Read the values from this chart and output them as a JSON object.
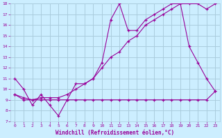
{
  "xlabel": "Windchill (Refroidissement éolien,°C)",
  "bg_color": "#cceeff",
  "grid_color": "#aaccdd",
  "line_color": "#990099",
  "xlim": [
    -0.5,
    23.5
  ],
  "ylim": [
    7,
    18
  ],
  "yticks": [
    7,
    8,
    9,
    10,
    11,
    12,
    13,
    14,
    15,
    16,
    17,
    18
  ],
  "xticks": [
    0,
    1,
    2,
    3,
    4,
    5,
    6,
    7,
    8,
    9,
    10,
    11,
    12,
    13,
    14,
    15,
    16,
    17,
    18,
    19,
    20,
    21,
    22,
    23
  ],
  "line1_x": [
    0,
    1,
    2,
    3,
    4,
    5,
    6,
    7,
    8,
    9,
    10,
    11,
    12,
    13,
    14,
    15,
    16,
    17,
    18,
    19,
    20,
    21,
    22,
    23
  ],
  "line1_y": [
    11,
    10,
    8.5,
    9.5,
    8.5,
    7.5,
    9.0,
    10.5,
    10.5,
    11.0,
    12.5,
    16.5,
    18.0,
    15.5,
    15.5,
    16.5,
    17.0,
    17.5,
    18.0,
    18.0,
    14.0,
    12.5,
    11.0,
    9.8
  ],
  "line2_x": [
    0,
    1,
    2,
    3,
    4,
    5,
    6,
    7,
    8,
    9,
    10,
    11,
    12,
    13,
    14,
    15,
    16,
    17,
    18,
    19,
    20,
    21,
    22,
    23
  ],
  "line2_y": [
    9.5,
    9.0,
    9.0,
    9.2,
    9.2,
    9.2,
    9.5,
    10.0,
    10.5,
    11.0,
    12.0,
    13.0,
    13.5,
    14.5,
    15.0,
    16.0,
    16.5,
    17.0,
    17.5,
    18.0,
    18.0,
    18.0,
    17.5,
    18.0
  ],
  "line3_x": [
    0,
    1,
    2,
    3,
    4,
    5,
    6,
    7,
    8,
    9,
    10,
    11,
    12,
    13,
    14,
    15,
    16,
    17,
    18,
    19,
    20,
    21,
    22,
    23
  ],
  "line3_y": [
    9.5,
    9.2,
    9.0,
    9.0,
    9.0,
    9.0,
    9.0,
    9.0,
    9.0,
    9.0,
    9.0,
    9.0,
    9.0,
    9.0,
    9.0,
    9.0,
    9.0,
    9.0,
    9.0,
    9.0,
    9.0,
    9.0,
    9.0,
    9.8
  ]
}
